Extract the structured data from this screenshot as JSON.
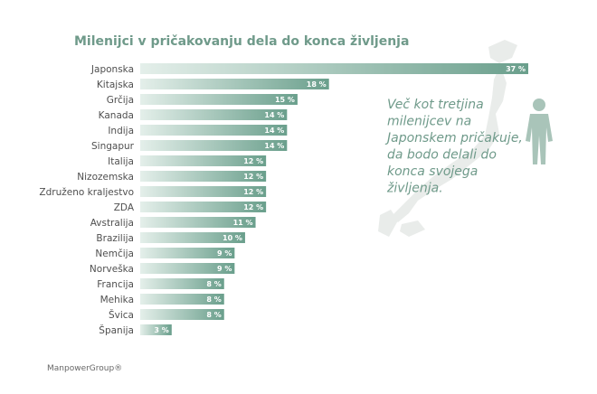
{
  "chart_data": {
    "type": "bar",
    "orientation": "horizontal",
    "title": "Milenijci v pričakovanju dela do konca življenja",
    "categories": [
      "Japonska",
      "Kitajska",
      "Grčija",
      "Kanada",
      "Indija",
      "Singapur",
      "Italija",
      "Nizozemska",
      "Združeno kraljestvo",
      "ZDA",
      "Avstralija",
      "Brazilija",
      "Nemčija",
      "Norveška",
      "Francija",
      "Mehika",
      "Švica",
      "Španija"
    ],
    "values": [
      37,
      18,
      15,
      14,
      14,
      14,
      12,
      12,
      12,
      12,
      11,
      10,
      9,
      9,
      8,
      8,
      8,
      3
    ],
    "value_labels": [
      "37 %",
      "18 %",
      "15 %",
      "14 %",
      "14 %",
      "14 %",
      "12 %",
      "12 %",
      "12 %",
      "12 %",
      "11 %",
      "10 %",
      "9 %",
      "9 %",
      "8 %",
      "8 %",
      "8 %",
      "3 %"
    ],
    "xlim": [
      0,
      37
    ],
    "grid": false,
    "colors": {
      "bar_start": "#e4efea",
      "bar_end": "#6a9f8c",
      "title": "#6f9a8a",
      "map": "#e9ecea"
    }
  },
  "callout_lines": [
    "Več kot tretjina",
    "milenijcev na",
    "Japonskem pričakuje,",
    "da bodo delali do",
    "konca svojega",
    "življenja."
  ],
  "footer": "ManpowerGroup®",
  "icons": {
    "map": "japan-map-icon",
    "person": "person-silhouette-icon"
  }
}
